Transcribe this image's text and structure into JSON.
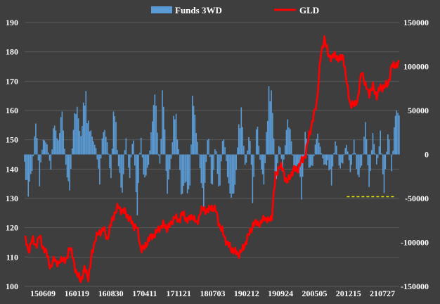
{
  "chart_data": {
    "type": "bar+line",
    "colors": {
      "background": "#3e3e3e",
      "bars": "#5b9bd5",
      "line": "#ff0000",
      "grid": "#5a5a5a",
      "threshold": "#e8e800"
    },
    "legend": {
      "placement": "top-center",
      "entries": [
        {
          "label": "Funds 3WD",
          "type": "bar"
        },
        {
          "label": "GLD",
          "type": "line"
        }
      ]
    },
    "left_axis": {
      "min": 100,
      "max": 190,
      "ticks": [
        "190",
        "180",
        "170",
        "160",
        "150",
        "140",
        "130",
        "120",
        "110",
        "100"
      ],
      "series": "GLD"
    },
    "right_axis": {
      "min": -150000,
      "max": 150000,
      "ticks": [
        "150000",
        "100000",
        "50000",
        "0",
        "-50000",
        "-100000",
        "-150000"
      ],
      "series": "Funds 3WD"
    },
    "x_tick_labels": [
      "150609",
      "160119",
      "160830",
      "170411",
      "171121",
      "180703",
      "190212",
      "190924",
      "200505",
      "201215",
      "210727"
    ],
    "threshold_line": {
      "value": -48000,
      "style": "dashed",
      "range_start_index": 0.86,
      "range_end_index": 0.99
    },
    "line_anchors": [
      [
        0.0,
        117
      ],
      [
        0.01,
        112
      ],
      [
        0.02,
        116
      ],
      [
        0.03,
        114
      ],
      [
        0.04,
        117
      ],
      [
        0.05,
        113
      ],
      [
        0.06,
        111
      ],
      [
        0.07,
        106
      ],
      [
        0.08,
        110
      ],
      [
        0.09,
        107
      ],
      [
        0.1,
        110
      ],
      [
        0.11,
        108
      ],
      [
        0.12,
        114
      ],
      [
        0.13,
        109
      ],
      [
        0.14,
        104
      ],
      [
        0.15,
        102
      ],
      [
        0.16,
        106
      ],
      [
        0.17,
        103
      ],
      [
        0.18,
        111
      ],
      [
        0.19,
        117
      ],
      [
        0.2,
        118
      ],
      [
        0.21,
        120
      ],
      [
        0.22,
        116
      ],
      [
        0.23,
        121
      ],
      [
        0.24,
        125
      ],
      [
        0.25,
        127
      ],
      [
        0.26,
        126
      ],
      [
        0.27,
        125
      ],
      [
        0.28,
        123
      ],
      [
        0.29,
        121
      ],
      [
        0.3,
        120
      ],
      [
        0.31,
        113
      ],
      [
        0.32,
        113
      ],
      [
        0.33,
        116
      ],
      [
        0.34,
        117
      ],
      [
        0.35,
        118
      ],
      [
        0.36,
        120
      ],
      [
        0.37,
        121
      ],
      [
        0.38,
        120
      ],
      [
        0.39,
        121
      ],
      [
        0.4,
        124
      ],
      [
        0.41,
        122
      ],
      [
        0.42,
        125
      ],
      [
        0.43,
        123
      ],
      [
        0.44,
        123
      ],
      [
        0.45,
        124
      ],
      [
        0.46,
        121
      ],
      [
        0.47,
        126
      ],
      [
        0.48,
        126
      ],
      [
        0.49,
        126
      ],
      [
        0.5,
        127
      ],
      [
        0.51,
        126
      ],
      [
        0.52,
        121
      ],
      [
        0.53,
        118
      ],
      [
        0.54,
        115
      ],
      [
        0.55,
        113
      ],
      [
        0.56,
        112
      ],
      [
        0.57,
        111
      ],
      [
        0.58,
        112
      ],
      [
        0.59,
        115
      ],
      [
        0.6,
        118
      ],
      [
        0.61,
        121
      ],
      [
        0.62,
        122
      ],
      [
        0.63,
        121
      ],
      [
        0.64,
        124
      ],
      [
        0.65,
        122
      ],
      [
        0.66,
        124
      ],
      [
        0.67,
        138
      ],
      [
        0.68,
        141
      ],
      [
        0.69,
        140
      ],
      [
        0.7,
        135
      ],
      [
        0.71,
        138
      ],
      [
        0.72,
        140
      ],
      [
        0.73,
        140
      ],
      [
        0.74,
        143
      ],
      [
        0.75,
        145
      ],
      [
        0.76,
        152
      ],
      [
        0.77,
        157
      ],
      [
        0.78,
        163
      ],
      [
        0.79,
        178
      ],
      [
        0.8,
        185
      ],
      [
        0.81,
        179
      ],
      [
        0.82,
        178
      ],
      [
        0.83,
        179
      ],
      [
        0.84,
        177
      ],
      [
        0.85,
        179
      ],
      [
        0.86,
        169
      ],
      [
        0.87,
        162
      ],
      [
        0.88,
        162
      ],
      [
        0.89,
        164
      ],
      [
        0.9,
        174
      ],
      [
        0.91,
        168
      ],
      [
        0.92,
        166
      ],
      [
        0.93,
        168
      ],
      [
        0.94,
        165
      ],
      [
        0.95,
        168
      ],
      [
        0.96,
        168
      ],
      [
        0.97,
        169
      ],
      [
        0.98,
        175
      ],
      [
        1.0,
        176
      ]
    ],
    "bar_anchors": [
      [
        0.0,
        -15000
      ],
      [
        0.01,
        -60000
      ],
      [
        0.02,
        -30000
      ],
      [
        0.03,
        50000
      ],
      [
        0.04,
        -40000
      ],
      [
        0.05,
        30000
      ],
      [
        0.06,
        15000
      ],
      [
        0.07,
        -20000
      ],
      [
        0.08,
        60000
      ],
      [
        0.09,
        20000
      ],
      [
        0.1,
        60000
      ],
      [
        0.11,
        -15000
      ],
      [
        0.12,
        -70000
      ],
      [
        0.13,
        40000
      ],
      [
        0.14,
        65000
      ],
      [
        0.15,
        30000
      ],
      [
        0.16,
        100000
      ],
      [
        0.17,
        40000
      ],
      [
        0.18,
        30000
      ],
      [
        0.19,
        15000
      ],
      [
        0.2,
        -40000
      ],
      [
        0.21,
        40000
      ],
      [
        0.22,
        30000
      ],
      [
        0.23,
        -40000
      ],
      [
        0.24,
        80000
      ],
      [
        0.25,
        -15000
      ],
      [
        0.26,
        -70000
      ],
      [
        0.27,
        30000
      ],
      [
        0.28,
        -40000
      ],
      [
        0.29,
        40000
      ],
      [
        0.3,
        -90000
      ],
      [
        0.31,
        30000
      ],
      [
        0.32,
        -50000
      ],
      [
        0.33,
        -20000
      ],
      [
        0.34,
        40000
      ],
      [
        0.35,
        100000
      ],
      [
        0.36,
        -30000
      ],
      [
        0.37,
        105000
      ],
      [
        0.38,
        -60000
      ],
      [
        0.39,
        -20000
      ],
      [
        0.4,
        70000
      ],
      [
        0.41,
        20000
      ],
      [
        0.42,
        -80000
      ],
      [
        0.43,
        -40000
      ],
      [
        0.44,
        -60000
      ],
      [
        0.45,
        105000
      ],
      [
        0.46,
        30000
      ],
      [
        0.47,
        -30000
      ],
      [
        0.48,
        -70000
      ],
      [
        0.49,
        50000
      ],
      [
        0.5,
        -60000
      ],
      [
        0.51,
        20000
      ],
      [
        0.52,
        -70000
      ],
      [
        0.53,
        40000
      ],
      [
        0.54,
        -20000
      ],
      [
        0.55,
        -60000
      ],
      [
        0.56,
        -80000
      ],
      [
        0.57,
        30000
      ],
      [
        0.58,
        60000
      ],
      [
        0.59,
        -30000
      ],
      [
        0.6,
        40000
      ],
      [
        0.61,
        -70000
      ],
      [
        0.62,
        60000
      ],
      [
        0.63,
        -20000
      ],
      [
        0.64,
        -40000
      ],
      [
        0.65,
        80000
      ],
      [
        0.66,
        120000
      ],
      [
        0.67,
        -50000
      ],
      [
        0.68,
        20000
      ],
      [
        0.69,
        -30000
      ],
      [
        0.7,
        55000
      ],
      [
        0.71,
        30000
      ],
      [
        0.72,
        -25000
      ],
      [
        0.73,
        -20000
      ],
      [
        0.74,
        -60000
      ],
      [
        0.75,
        40000
      ],
      [
        0.76,
        -30000
      ],
      [
        0.77,
        -15000
      ],
      [
        0.78,
        30000
      ],
      [
        0.79,
        10000
      ],
      [
        0.8,
        -20000
      ],
      [
        0.81,
        -10000
      ],
      [
        0.82,
        -40000
      ],
      [
        0.83,
        30000
      ],
      [
        0.84,
        -20000
      ],
      [
        0.85,
        -10000
      ],
      [
        0.86,
        20000
      ],
      [
        0.87,
        -30000
      ],
      [
        0.88,
        20000
      ],
      [
        0.89,
        -40000
      ],
      [
        0.9,
        -20000
      ],
      [
        0.91,
        50000
      ],
      [
        0.92,
        -50000
      ],
      [
        0.93,
        40000
      ],
      [
        0.94,
        -20000
      ],
      [
        0.95,
        30000
      ],
      [
        0.96,
        -60000
      ],
      [
        0.97,
        40000
      ],
      [
        0.98,
        -20000
      ],
      [
        0.99,
        60000
      ],
      [
        1.0,
        80000
      ]
    ],
    "bar_count": 300
  }
}
